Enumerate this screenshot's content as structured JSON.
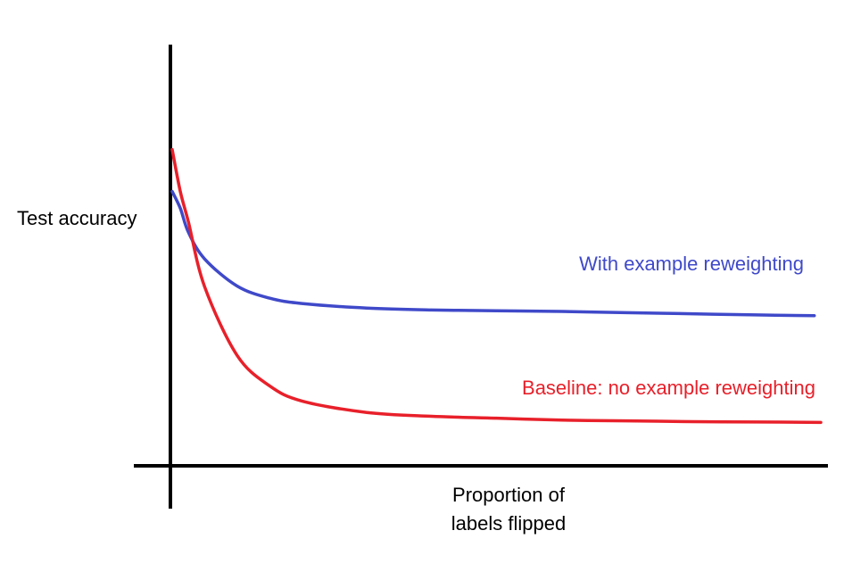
{
  "chart_data": {
    "type": "line",
    "title": "",
    "xlabel": [
      "Proportion of",
      "labels flipped"
    ],
    "ylabel": "Test accuracy",
    "ticks": "none",
    "grid": false,
    "legend": "inline-labels",
    "xlim": [
      0,
      1
    ],
    "ylim": [
      0,
      1
    ],
    "series": [
      {
        "name": "With example reweighting",
        "color": "#3f49c9",
        "x": [
          0,
          0.0125,
          0.025,
          0.05,
          0.1,
          0.15,
          0.2,
          0.3,
          0.4,
          0.5,
          0.6,
          0.7,
          0.8,
          0.9,
          0.99
        ],
        "y": [
          0.72,
          0.676,
          0.613,
          0.543,
          0.472,
          0.44,
          0.426,
          0.414,
          0.409,
          0.407,
          0.405,
          0.402,
          0.399,
          0.396,
          0.394
        ]
      },
      {
        "name": "Baseline: no example reweighting",
        "color": "#e8202a",
        "x": [
          0,
          0.0125,
          0.025,
          0.05,
          0.1,
          0.15,
          0.2,
          0.3,
          0.4,
          0.5,
          0.6,
          0.7,
          0.8,
          0.9,
          1.0
        ],
        "y": [
          0.83,
          0.72,
          0.64,
          0.47,
          0.29,
          0.21,
          0.17,
          0.14,
          0.13,
          0.125,
          0.12,
          0.118,
          0.116,
          0.115,
          0.114
        ]
      }
    ]
  }
}
